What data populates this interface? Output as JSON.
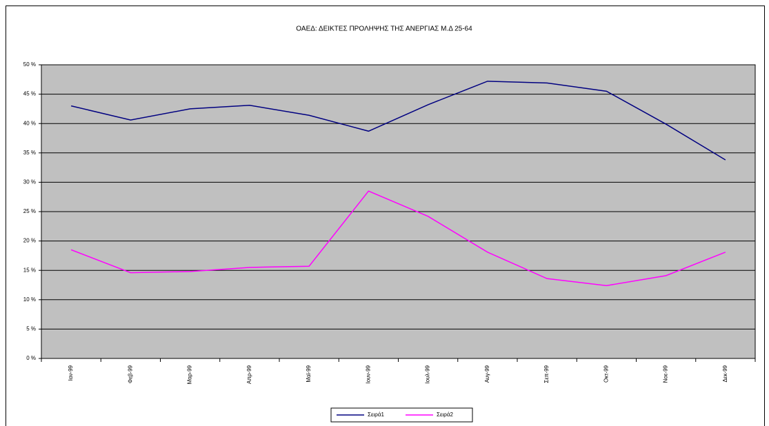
{
  "chart_data": {
    "type": "line",
    "title": "ΟΑΕΔ: ΔΕΙΚΤΕΣ ΠΡΟΛΗΨΗΣ ΤΗΣ ΑΝΕΡΓΙΑΣ Μ.Δ 25-64",
    "categories": [
      "Ιαν-99",
      "Φεβ-99",
      "Μαρ-99",
      "Απρ-99",
      "Μαϊ-99",
      "Ιουν-99",
      "Ιουλ-99",
      "Αυγ-99",
      "Σεπ-99",
      "Οκτ-99",
      "Νοε-99",
      "Δεκ-99"
    ],
    "series": [
      {
        "name": "Σειρά1",
        "color": "#000080",
        "values": [
          43.0,
          40.6,
          42.5,
          43.1,
          41.4,
          38.7,
          43.2,
          47.2,
          46.9,
          45.5,
          39.9,
          33.8
        ]
      },
      {
        "name": "Σειρά2",
        "color": "#ff00ff",
        "values": [
          18.5,
          14.6,
          14.8,
          15.5,
          15.7,
          28.5,
          24.2,
          18.1,
          13.6,
          12.4,
          14.1,
          18.1
        ]
      }
    ],
    "ylim": [
      0,
      50
    ],
    "yticks": [
      {
        "value": 0,
        "label": "0 %"
      },
      {
        "value": 5,
        "label": "5 %"
      },
      {
        "value": 10,
        "label": "10 %"
      },
      {
        "value": 15,
        "label": "15 %"
      },
      {
        "value": 20,
        "label": "20 %"
      },
      {
        "value": 25,
        "label": "25 %"
      },
      {
        "value": 30,
        "label": "30 %"
      },
      {
        "value": 35,
        "label": "35 %"
      },
      {
        "value": 40,
        "label": "40 %"
      },
      {
        "value": 45,
        "label": "45 %"
      },
      {
        "value": 50,
        "label": "50 %"
      }
    ],
    "grid": true,
    "legend": "bottom"
  }
}
